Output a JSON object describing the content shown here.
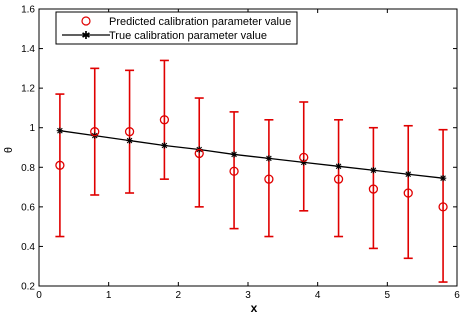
{
  "chart_data": {
    "type": "scatter",
    "xlabel": "x",
    "ylabel": "θ",
    "xlim": [
      0,
      6
    ],
    "ylim": [
      0.2,
      1.6
    ],
    "xticks": [
      0,
      1,
      2,
      3,
      4,
      5,
      6
    ],
    "yticks": [
      0.2,
      0.4,
      0.6,
      0.8,
      1,
      1.2,
      1.4,
      1.6
    ],
    "xtick_labels": [
      "0",
      "1",
      "2",
      "3",
      "4",
      "5",
      "6"
    ],
    "ytick_labels": [
      "0.2",
      "0.4",
      "0.6",
      "0.8",
      "1",
      "1.2",
      "1.4",
      "1.6"
    ],
    "legend_position": "top-left",
    "grid": false,
    "series": [
      {
        "name": "Predicted calibration parameter value",
        "style": "circle markers with error bars",
        "color": "#e00000",
        "x": [
          0.3,
          0.8,
          1.3,
          1.8,
          2.3,
          2.8,
          3.3,
          3.8,
          4.3,
          4.8,
          5.3,
          5.8
        ],
        "y": [
          0.81,
          0.98,
          0.98,
          1.04,
          0.87,
          0.78,
          0.74,
          0.85,
          0.74,
          0.69,
          0.67,
          0.6
        ],
        "lower": [
          0.45,
          0.66,
          0.67,
          0.74,
          0.6,
          0.49,
          0.45,
          0.58,
          0.45,
          0.39,
          0.34,
          0.22
        ],
        "upper": [
          1.17,
          1.3,
          1.29,
          1.34,
          1.15,
          1.08,
          1.04,
          1.13,
          1.04,
          1.0,
          1.01,
          0.99
        ]
      },
      {
        "name": "True calibration parameter value",
        "style": "line with star markers",
        "color": "#000000",
        "x": [
          0.3,
          0.8,
          1.3,
          1.8,
          2.3,
          2.8,
          3.3,
          3.8,
          4.3,
          4.8,
          5.3,
          5.8
        ],
        "y": [
          0.985,
          0.96,
          0.935,
          0.91,
          0.89,
          0.865,
          0.845,
          0.825,
          0.805,
          0.785,
          0.765,
          0.745
        ]
      }
    ]
  }
}
